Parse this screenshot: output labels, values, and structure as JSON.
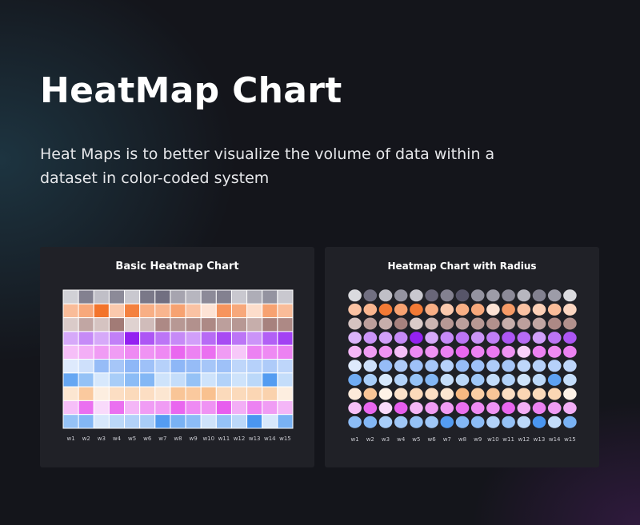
{
  "header": {
    "title": "HeatMap Chart",
    "subtitle": "Heat Maps is to better visualize the volume of data within a dataset in color-coded system"
  },
  "chart_data": [
    {
      "type": "heatmap",
      "title": "Basic Heatmap Chart",
      "x": [
        "w1",
        "w2",
        "w3",
        "w4",
        "w5",
        "w6",
        "w7",
        "w8",
        "w9",
        "w10",
        "w11",
        "w12",
        "w13",
        "w14",
        "w15"
      ],
      "series": [
        {
          "color": "#3d3a52",
          "values": [
            0.15,
            0.6,
            0.25,
            0.55,
            0.2,
            0.65,
            0.7,
            0.4,
            0.3,
            0.55,
            0.6,
            0.2,
            0.35,
            0.5,
            0.2
          ]
        },
        {
          "color": "#f26d21",
          "values": [
            0.4,
            0.55,
            0.95,
            0.3,
            0.85,
            0.5,
            0.45,
            0.6,
            0.35,
            0.1,
            0.7,
            0.55,
            0.15,
            0.6,
            0.4
          ]
        },
        {
          "color": "#8e5e58",
          "values": [
            0.25,
            0.5,
            0.3,
            0.8,
            0.2,
            0.35,
            0.7,
            0.6,
            0.65,
            0.7,
            0.55,
            0.6,
            0.45,
            0.75,
            0.7
          ]
        },
        {
          "color": "#8f17f0",
          "values": [
            0.3,
            0.45,
            0.3,
            0.5,
            0.95,
            0.7,
            0.55,
            0.45,
            0.35,
            0.6,
            0.75,
            0.55,
            0.4,
            0.65,
            0.8
          ]
        },
        {
          "color": "#e23bea",
          "values": [
            0.25,
            0.35,
            0.45,
            0.45,
            0.55,
            0.5,
            0.55,
            0.75,
            0.6,
            0.7,
            0.45,
            0.2,
            0.6,
            0.55,
            0.6
          ]
        },
        {
          "color": "#4f8ff2",
          "values": [
            0.1,
            0.2,
            0.55,
            0.45,
            0.6,
            0.5,
            0.35,
            0.6,
            0.55,
            0.45,
            0.5,
            0.3,
            0.35,
            0.4,
            0.3
          ]
        },
        {
          "color": "#2e86ee",
          "values": [
            0.7,
            0.45,
            0.1,
            0.35,
            0.5,
            0.55,
            0.15,
            0.2,
            0.45,
            0.15,
            0.3,
            0.15,
            0.25,
            0.8,
            0.2
          ]
        },
        {
          "color": "#f6a55c",
          "values": [
            0.2,
            0.55,
            0.1,
            0.3,
            0.35,
            0.3,
            0.2,
            0.6,
            0.55,
            0.65,
            0.35,
            0.35,
            0.4,
            0.45,
            0.1
          ]
        },
        {
          "color": "#e23bea",
          "values": [
            0.25,
            0.7,
            0.1,
            0.7,
            0.3,
            0.45,
            0.45,
            0.75,
            0.55,
            0.5,
            0.8,
            0.35,
            0.6,
            0.45,
            0.3
          ]
        },
        {
          "color": "#2e86ee",
          "values": [
            0.45,
            0.55,
            0.1,
            0.25,
            0.3,
            0.35,
            0.8,
            0.6,
            0.5,
            0.15,
            0.45,
            0.25,
            0.85,
            0.1,
            0.6
          ]
        }
      ]
    },
    {
      "type": "heatmap",
      "title": "Heatmap Chart with Radius",
      "x": [
        "w1",
        "w2",
        "w3",
        "w4",
        "w5",
        "w6",
        "w7",
        "w8",
        "w9",
        "w10",
        "w11",
        "w12",
        "w13",
        "w14",
        "w15"
      ],
      "series": [
        {
          "color": "#3d3a52",
          "values": [
            0.1,
            0.7,
            0.25,
            0.5,
            0.2,
            0.75,
            0.6,
            0.85,
            0.5,
            0.45,
            0.55,
            0.3,
            0.6,
            0.45,
            0.1
          ]
        },
        {
          "color": "#f26d21",
          "values": [
            0.35,
            0.45,
            0.9,
            0.6,
            0.9,
            0.5,
            0.3,
            0.5,
            0.55,
            0.1,
            0.65,
            0.35,
            0.25,
            0.4,
            0.2
          ]
        },
        {
          "color": "#8e5e58",
          "values": [
            0.3,
            0.55,
            0.45,
            0.75,
            0.25,
            0.4,
            0.6,
            0.55,
            0.6,
            0.65,
            0.45,
            0.55,
            0.5,
            0.7,
            0.65
          ]
        },
        {
          "color": "#8f17f0",
          "values": [
            0.25,
            0.4,
            0.35,
            0.45,
            0.95,
            0.3,
            0.45,
            0.55,
            0.4,
            0.5,
            0.7,
            0.6,
            0.35,
            0.55,
            0.7
          ]
        },
        {
          "color": "#e23bea",
          "values": [
            0.3,
            0.45,
            0.5,
            0.25,
            0.55,
            0.5,
            0.6,
            0.75,
            0.6,
            0.65,
            0.5,
            0.15,
            0.6,
            0.55,
            0.6
          ]
        },
        {
          "color": "#4f8ff2",
          "values": [
            0.1,
            0.2,
            0.55,
            0.4,
            0.5,
            0.45,
            0.35,
            0.55,
            0.5,
            0.4,
            0.45,
            0.3,
            0.35,
            0.35,
            0.3
          ]
        },
        {
          "color": "#2e86ee",
          "values": [
            0.65,
            0.35,
            0.1,
            0.3,
            0.45,
            0.55,
            0.2,
            0.25,
            0.4,
            0.2,
            0.3,
            0.15,
            0.25,
            0.75,
            0.2
          ]
        },
        {
          "color": "#f6a55c",
          "values": [
            0.15,
            0.6,
            0.05,
            0.25,
            0.35,
            0.3,
            0.2,
            0.75,
            0.5,
            0.6,
            0.3,
            0.4,
            0.35,
            0.4,
            0.05
          ]
        },
        {
          "color": "#e23bea",
          "values": [
            0.25,
            0.75,
            0.1,
            0.8,
            0.3,
            0.45,
            0.45,
            0.7,
            0.55,
            0.5,
            0.75,
            0.35,
            0.6,
            0.45,
            0.35
          ]
        },
        {
          "color": "#2e86ee",
          "values": [
            0.5,
            0.55,
            0.35,
            0.4,
            0.45,
            0.4,
            0.8,
            0.55,
            0.5,
            0.3,
            0.45,
            0.25,
            0.85,
            0.2,
            0.6
          ]
        }
      ]
    }
  ]
}
